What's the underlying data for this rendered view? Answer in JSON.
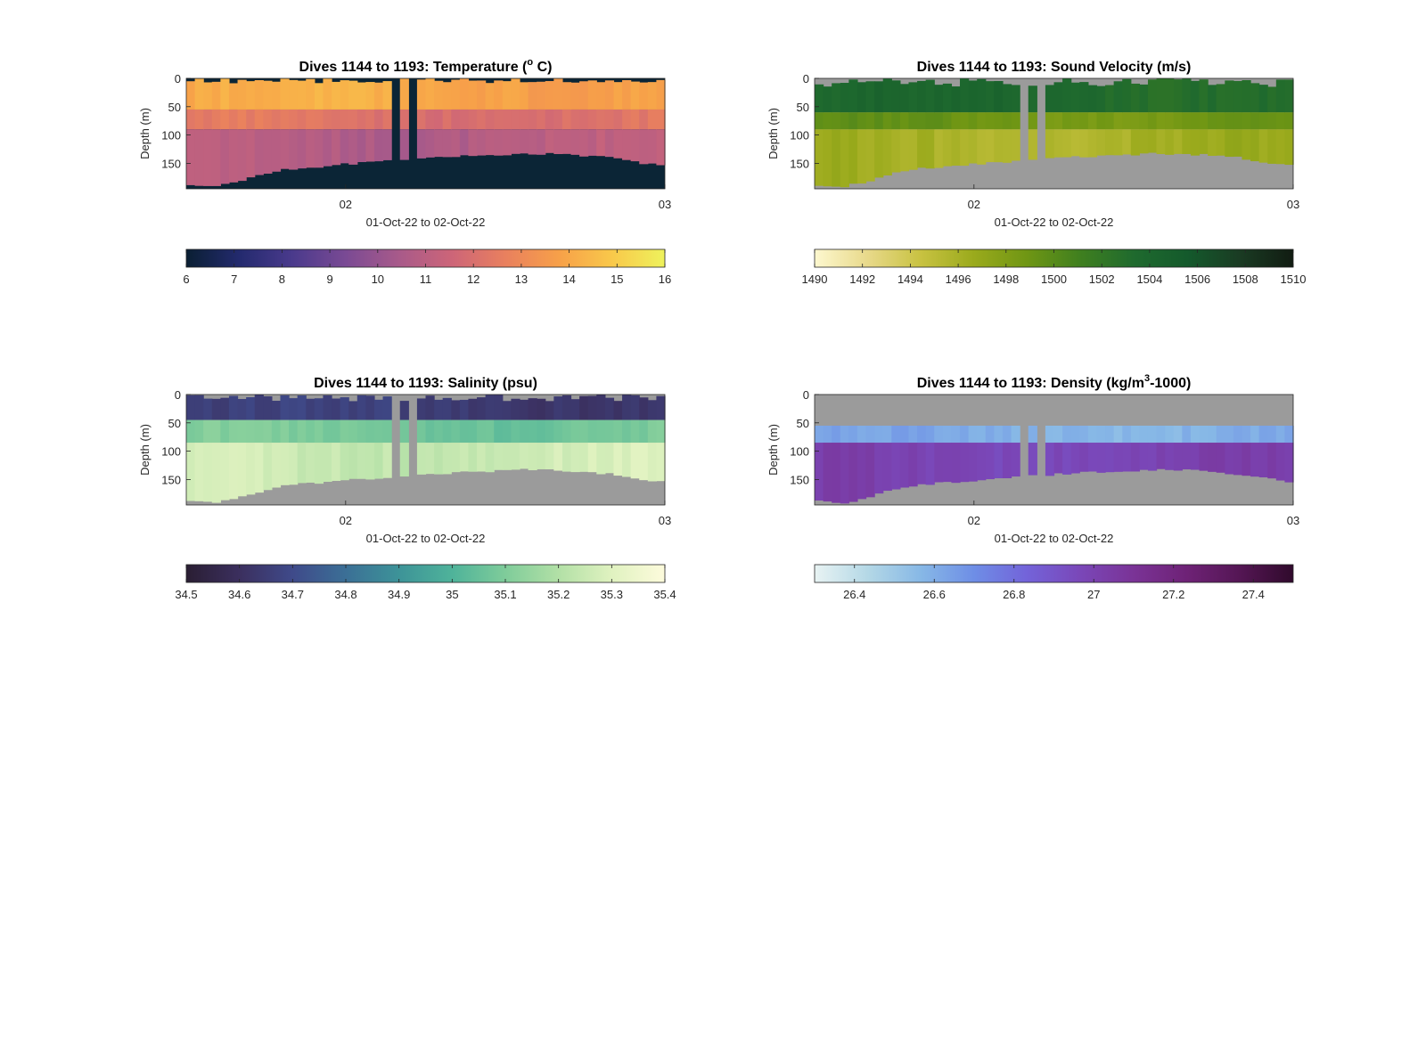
{
  "chart_data": [
    {
      "type": "heatmap",
      "title": "Dives 1144 to 1193: Temperature (° C)",
      "title_parts": [
        "Dives 1144 to 1193: Temperature (",
        "o",
        " C)"
      ],
      "xlabel": "01-Oct-22 to 02-Oct-22",
      "ylabel": "Depth (m)",
      "x_ticks": [
        "02",
        "03"
      ],
      "y_ticks": [
        0,
        50,
        100,
        150
      ],
      "ylim": [
        0,
        195
      ],
      "colorbar": {
        "min": 6,
        "max": 16,
        "ticks": [
          6,
          7,
          8,
          9,
          10,
          11,
          12,
          13,
          14,
          15,
          16
        ],
        "colors": [
          "#0a1f33",
          "#232a6e",
          "#4a3a8c",
          "#7a4a94",
          "#a85a8a",
          "#cd6578",
          "#e9805e",
          "#f7a049",
          "#f9c84a",
          "#eef25c"
        ]
      },
      "nodata_color": "#0b2536",
      "layers": [
        {
          "depth": [
            0,
            55
          ],
          "value": 14.0
        },
        {
          "depth": [
            55,
            90
          ],
          "value": 12.2
        },
        {
          "depth": [
            90,
            195
          ],
          "value": 10.9
        }
      ],
      "surface_gap_max_m": 9,
      "bottom_depth_m": [
        188,
        192,
        180,
        165,
        158,
        155,
        150,
        147,
        143,
        140,
        137,
        135,
        133,
        133,
        136,
        140,
        148,
        155
      ],
      "gaps": [
        [
          0.42,
          0.44
        ],
        [
          0.46,
          0.48
        ]
      ]
    },
    {
      "type": "heatmap",
      "title": "Dives 1144 to 1193: Sound Velocity (m/s)",
      "xlabel": "01-Oct-22 to 02-Oct-22",
      "ylabel": "Depth (m)",
      "x_ticks": [
        "02",
        "03"
      ],
      "y_ticks": [
        0,
        50,
        100,
        150
      ],
      "ylim": [
        0,
        195
      ],
      "colorbar": {
        "min": 1490,
        "max": 1510,
        "ticks": [
          1490,
          1492,
          1494,
          1496,
          1498,
          1500,
          1502,
          1504,
          1506,
          1508,
          1510
        ],
        "colors": [
          "#fdf8cf",
          "#e8d98a",
          "#c8c241",
          "#9aaa1c",
          "#6f9614",
          "#3f7f1f",
          "#1f6a2e",
          "#145a2c",
          "#1a3b23",
          "#111c12"
        ]
      },
      "nodata_color": "#9b9b9b",
      "layers": [
        {
          "depth": [
            0,
            60
          ],
          "value": 1503.5
        },
        {
          "depth": [
            60,
            90
          ],
          "value": 1499.0
        },
        {
          "depth": [
            90,
            195
          ],
          "value": 1496.2
        }
      ],
      "surface_gap_max_m": 15,
      "bottom_depth_m": [
        188,
        192,
        180,
        165,
        158,
        155,
        150,
        147,
        143,
        140,
        137,
        135,
        133,
        133,
        136,
        140,
        148,
        155
      ],
      "gaps": [
        [
          0.42,
          0.44
        ],
        [
          0.46,
          0.48
        ]
      ]
    },
    {
      "type": "heatmap",
      "title": "Dives 1144 to 1193: Salinity (psu)",
      "xlabel": "01-Oct-22 to 02-Oct-22",
      "ylabel": "Depth (m)",
      "x_ticks": [
        "02",
        "03"
      ],
      "y_ticks": [
        0,
        50,
        100,
        150
      ],
      "ylim": [
        0,
        195
      ],
      "colorbar": {
        "min": 34.5,
        "max": 35.4,
        "ticks": [
          34.5,
          34.6,
          34.7,
          34.8,
          34.9,
          35,
          35.1,
          35.2,
          35.3,
          35.4
        ],
        "colors": [
          "#2a1e33",
          "#3b2f5e",
          "#3f4a8a",
          "#3b6f96",
          "#3d9398",
          "#4fb39a",
          "#7fcc9a",
          "#b2e0a6",
          "#e0f2c0",
          "#fdfbdc"
        ]
      },
      "nodata_color": "#9b9b9b",
      "layers": [
        {
          "depth": [
            0,
            45
          ],
          "value": 34.65
        },
        {
          "depth": [
            45,
            85
          ],
          "value": 35.08
        },
        {
          "depth": [
            85,
            195
          ],
          "value": 35.26
        }
      ],
      "surface_gap_max_m": 12,
      "bottom_depth_m": [
        188,
        192,
        180,
        165,
        158,
        155,
        150,
        147,
        143,
        140,
        137,
        135,
        133,
        133,
        136,
        140,
        148,
        155
      ],
      "gaps": [
        [
          0.42,
          0.44
        ],
        [
          0.46,
          0.48
        ]
      ]
    },
    {
      "type": "heatmap",
      "title": "Dives 1144 to 1193: Density (kg/m³-1000)",
      "title_parts": [
        "Dives 1144 to 1193: Density (kg/m",
        "3",
        "-1000)"
      ],
      "xlabel": "01-Oct-22 to 02-Oct-22",
      "ylabel": "Depth (m)",
      "x_ticks": [
        "02",
        "03"
      ],
      "y_ticks": [
        0,
        50,
        100,
        150
      ],
      "ylim": [
        0,
        195
      ],
      "colorbar": {
        "min": 26.3,
        "max": 27.5,
        "ticks": [
          26.4,
          26.6,
          26.8,
          27,
          27.2,
          27.4
        ],
        "colors": [
          "#e8f3f3",
          "#b4d8e6",
          "#87b8e6",
          "#6e8ee6",
          "#7363d9",
          "#7a47b8",
          "#7a3396",
          "#6e2276",
          "#541654",
          "#300a2c"
        ]
      },
      "nodata_color": "#9b9b9b",
      "layers": [
        {
          "depth": [
            0,
            55
          ],
          "value": null
        },
        {
          "depth": [
            55,
            85
          ],
          "value": 26.6
        },
        {
          "depth": [
            85,
            195
          ],
          "value": 27.0
        }
      ],
      "surface_gap_max_m": 0,
      "bottom_depth_m": [
        188,
        192,
        180,
        165,
        158,
        155,
        150,
        147,
        143,
        140,
        137,
        135,
        133,
        133,
        136,
        140,
        148,
        155
      ],
      "gaps": [
        [
          0.42,
          0.44
        ],
        [
          0.46,
          0.48
        ]
      ]
    }
  ]
}
